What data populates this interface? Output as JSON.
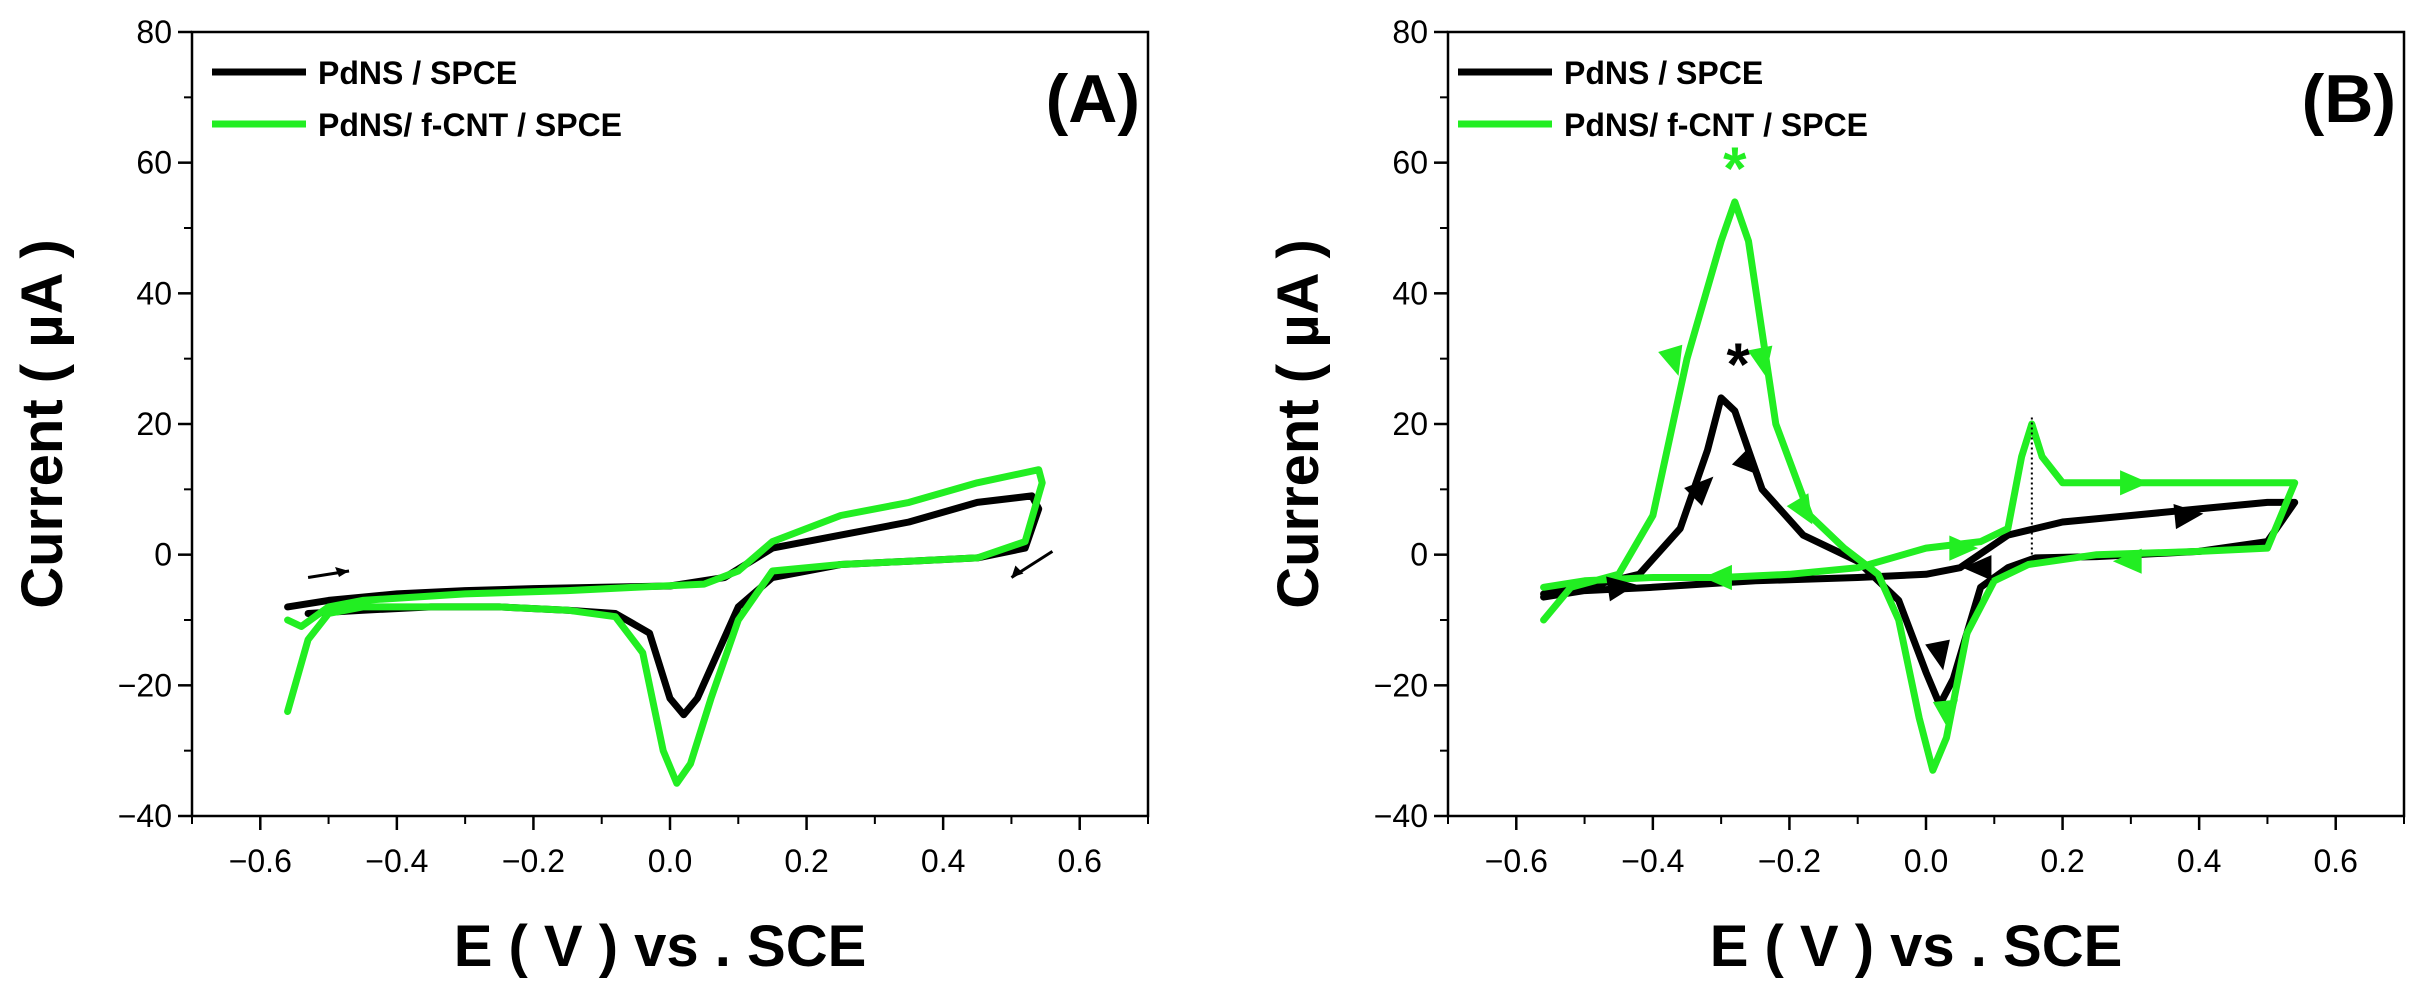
{
  "colors": {
    "black_series": "#000000",
    "green_series": "#22ee22"
  },
  "chart_data": [
    {
      "type": "line",
      "panel_label": "(A)",
      "xlabel": "E ( V ) vs . SCE",
      "ylabel": "Current ( µA )",
      "xlim": [
        -0.7,
        0.7
      ],
      "ylim": [
        -40,
        80
      ],
      "xticks": [
        "-0.6",
        "-0.4",
        "-0.2",
        "0.0",
        "0.2",
        "0.4",
        "0.6"
      ],
      "yticks": [
        "-40",
        "-20",
        "0",
        "20",
        "40",
        "60",
        "80"
      ],
      "legend_position": "top-left",
      "series": [
        {
          "name": "PdNS / SPCE",
          "color": "#000000",
          "points": [
            [
              -0.56,
              -8
            ],
            [
              -0.5,
              -7
            ],
            [
              -0.4,
              -6
            ],
            [
              -0.3,
              -5.5
            ],
            [
              -0.2,
              -5.2
            ],
            [
              -0.1,
              -5
            ],
            [
              0.0,
              -4.8
            ],
            [
              0.08,
              -3.5
            ],
            [
              0.15,
              1
            ],
            [
              0.25,
              3
            ],
            [
              0.35,
              5
            ],
            [
              0.45,
              8
            ],
            [
              0.53,
              9
            ],
            [
              0.54,
              7
            ],
            [
              0.52,
              1
            ],
            [
              0.45,
              -0.5
            ],
            [
              0.35,
              -1
            ],
            [
              0.25,
              -1.5
            ],
            [
              0.15,
              -3.5
            ],
            [
              0.1,
              -8
            ],
            [
              0.07,
              -15
            ],
            [
              0.04,
              -22
            ],
            [
              0.02,
              -24.5
            ],
            [
              0.0,
              -22
            ],
            [
              -0.03,
              -12
            ],
            [
              -0.08,
              -9
            ],
            [
              -0.15,
              -8.5
            ],
            [
              -0.25,
              -8
            ],
            [
              -0.35,
              -8
            ],
            [
              -0.45,
              -8.5
            ],
            [
              -0.53,
              -9
            ]
          ]
        },
        {
          "name": "PdNS/ f-CNT / SPCE",
          "color": "#22ee22",
          "points": [
            [
              -0.56,
              -10
            ],
            [
              -0.54,
              -11
            ],
            [
              -0.5,
              -8
            ],
            [
              -0.45,
              -7
            ],
            [
              -0.3,
              -6
            ],
            [
              -0.15,
              -5.5
            ],
            [
              -0.05,
              -5
            ],
            [
              0.05,
              -4.5
            ],
            [
              0.1,
              -2.5
            ],
            [
              0.15,
              2
            ],
            [
              0.25,
              6
            ],
            [
              0.35,
              8
            ],
            [
              0.45,
              11
            ],
            [
              0.54,
              13
            ],
            [
              0.545,
              11
            ],
            [
              0.52,
              2
            ],
            [
              0.45,
              -0.5
            ],
            [
              0.35,
              -1
            ],
            [
              0.25,
              -1.5
            ],
            [
              0.15,
              -2.5
            ],
            [
              0.1,
              -10
            ],
            [
              0.06,
              -22
            ],
            [
              0.03,
              -32
            ],
            [
              0.01,
              -35
            ],
            [
              -0.01,
              -30
            ],
            [
              -0.04,
              -15
            ],
            [
              -0.08,
              -9.5
            ],
            [
              -0.15,
              -8.5
            ],
            [
              -0.25,
              -8
            ],
            [
              -0.35,
              -8
            ],
            [
              -0.45,
              -8
            ],
            [
              -0.5,
              -9
            ],
            [
              -0.53,
              -13
            ],
            [
              -0.56,
              -24
            ]
          ]
        }
      ]
    },
    {
      "type": "line",
      "panel_label": "(B)",
      "xlabel": "E ( V ) vs . SCE",
      "ylabel": "Current ( µA )",
      "xlim": [
        -0.7,
        0.7
      ],
      "ylim": [
        -40,
        80
      ],
      "xticks": [
        "-0.6",
        "-0.4",
        "-0.2",
        "0.0",
        "0.2",
        "0.4",
        "0.6"
      ],
      "yticks": [
        "-40",
        "-20",
        "0",
        "20",
        "40",
        "60",
        "80"
      ],
      "legend_position": "top-left",
      "annotations": [
        "*",
        "*"
      ],
      "series": [
        {
          "name": "PdNS / SPCE",
          "color": "#000000",
          "points": [
            [
              -0.56,
              -6
            ],
            [
              -0.5,
              -5
            ],
            [
              -0.42,
              -3
            ],
            [
              -0.36,
              4
            ],
            [
              -0.32,
              16
            ],
            [
              -0.3,
              24
            ],
            [
              -0.28,
              22
            ],
            [
              -0.24,
              10
            ],
            [
              -0.18,
              3
            ],
            [
              -0.1,
              -1
            ],
            [
              -0.04,
              -7
            ],
            [
              0.0,
              -18
            ],
            [
              0.02,
              -23
            ],
            [
              0.04,
              -19
            ],
            [
              0.08,
              -5
            ],
            [
              0.12,
              -2
            ],
            [
              0.16,
              -0.5
            ],
            [
              0.25,
              -0.3
            ],
            [
              0.4,
              0.5
            ],
            [
              0.5,
              2
            ],
            [
              0.54,
              8
            ],
            [
              0.5,
              8
            ],
            [
              0.4,
              7
            ],
            [
              0.3,
              6
            ],
            [
              0.2,
              5
            ],
            [
              0.12,
              3
            ],
            [
              0.05,
              -2
            ],
            [
              0.0,
              -3
            ],
            [
              -0.1,
              -3.5
            ],
            [
              -0.25,
              -4
            ],
            [
              -0.4,
              -5
            ],
            [
              -0.5,
              -5.5
            ],
            [
              -0.56,
              -6.5
            ]
          ]
        },
        {
          "name": "PdNS/ f-CNT / SPCE",
          "color": "#22ee22",
          "points": [
            [
              -0.56,
              -10
            ],
            [
              -0.52,
              -5
            ],
            [
              -0.45,
              -3
            ],
            [
              -0.4,
              6
            ],
            [
              -0.35,
              30
            ],
            [
              -0.3,
              48
            ],
            [
              -0.28,
              54
            ],
            [
              -0.26,
              48
            ],
            [
              -0.22,
              20
            ],
            [
              -0.17,
              6
            ],
            [
              -0.12,
              1
            ],
            [
              -0.07,
              -3
            ],
            [
              -0.04,
              -10
            ],
            [
              -0.01,
              -25
            ],
            [
              0.01,
              -33
            ],
            [
              0.03,
              -28
            ],
            [
              0.06,
              -12
            ],
            [
              0.1,
              -4
            ],
            [
              0.15,
              -1.5
            ],
            [
              0.25,
              0
            ],
            [
              0.4,
              0.5
            ],
            [
              0.5,
              1
            ],
            [
              0.54,
              11
            ],
            [
              0.5,
              11
            ],
            [
              0.4,
              11
            ],
            [
              0.3,
              11
            ],
            [
              0.2,
              11
            ],
            [
              0.17,
              15
            ],
            [
              0.155,
              20
            ],
            [
              0.14,
              15
            ],
            [
              0.12,
              4
            ],
            [
              0.08,
              2
            ],
            [
              0.0,
              1
            ],
            [
              -0.1,
              -2
            ],
            [
              -0.2,
              -3
            ],
            [
              -0.3,
              -3.5
            ],
            [
              -0.4,
              -3.5
            ],
            [
              -0.5,
              -4
            ],
            [
              -0.56,
              -5
            ]
          ]
        }
      ]
    }
  ]
}
